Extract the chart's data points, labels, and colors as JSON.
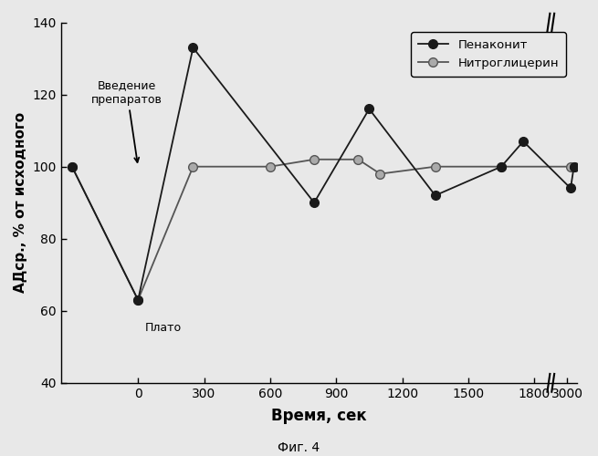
{
  "xlabel": "Время, сек",
  "ylabel": "АДср., % от исходного",
  "caption": "Фиг. 4",
  "ylim": [
    40,
    140
  ],
  "yticks": [
    40,
    60,
    80,
    100,
    120,
    140
  ],
  "display_xticks": [
    0,
    300,
    600,
    900,
    1200,
    1500,
    1800,
    3000
  ],
  "penakonit_x": [
    -300,
    0,
    250,
    800,
    1050,
    1350,
    1650,
    1750,
    3050,
    3100
  ],
  "penakonit_y": [
    100,
    63,
    133,
    90,
    116,
    92,
    100,
    107,
    94,
    100
  ],
  "nitroglycerine_x": [
    -300,
    0,
    250,
    600,
    800,
    1000,
    1100,
    1350,
    1650,
    3050,
    3100
  ],
  "nitroglycerine_y": [
    100,
    63,
    100,
    100,
    102,
    102,
    98,
    100,
    100,
    100,
    100
  ],
  "penakonit_color": "#1a1a1a",
  "nitroglycerine_color": "#555555",
  "nitroglycerine_marker_face": "#aaaaaa",
  "penakonit_label": "Пенаконит",
  "nitroglycerine_label": "Нитроглицерин",
  "annotation_text": "Введение\nпрепаратов",
  "plato_text": "Плато",
  "bg_color": "#e8e8e8"
}
